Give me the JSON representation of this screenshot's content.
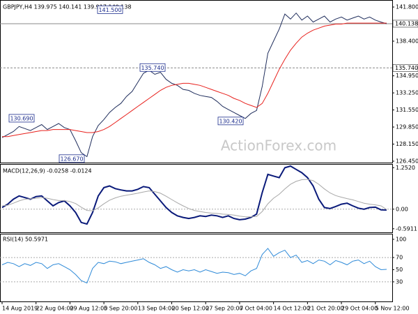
{
  "chart_data": [
    {
      "type": "line",
      "title": "GBPJPY,H4  139.975 140.141 139.917 140.138",
      "ylim": [
        126.31,
        142.29
      ],
      "yticks": [
        {
          "value": 141.8,
          "label": "141.800"
        },
        {
          "value": 138.4,
          "label": "138.400"
        },
        {
          "value": 134.95,
          "label": "134.950"
        },
        {
          "value": 133.25,
          "label": "133.250"
        },
        {
          "value": 131.55,
          "label": "131.550"
        },
        {
          "value": 129.85,
          "label": "129.850"
        },
        {
          "value": 128.15,
          "label": "128.150"
        },
        {
          "value": 126.45,
          "label": "126.450"
        }
      ],
      "levels": [
        {
          "value": 140.138,
          "label": "140.138"
        },
        {
          "value": 135.74,
          "label": "135.740"
        }
      ],
      "annotations": [
        {
          "value": 141.5,
          "label": "141.500"
        },
        {
          "value": 135.74,
          "label": "135.740"
        },
        {
          "value": 130.69,
          "label": "130.690"
        },
        {
          "value": 130.42,
          "label": "130.420"
        },
        {
          "value": 126.67,
          "label": "126.670"
        }
      ],
      "watermark": "ActionForex.com",
      "series": [
        {
          "name": "GBPJPY",
          "color": "#1f2d5c",
          "values": [
            128.8,
            129.1,
            129.4,
            129.9,
            129.7,
            129.5,
            129.8,
            130.1,
            129.6,
            129.9,
            130.2,
            129.8,
            129.6,
            128.5,
            127.3,
            126.9,
            128.9,
            130.0,
            130.6,
            131.3,
            131.8,
            132.2,
            132.9,
            133.4,
            134.3,
            135.2,
            135.5,
            135.1,
            135.3,
            134.6,
            134.2,
            134.0,
            133.6,
            133.5,
            133.2,
            133.0,
            132.9,
            132.8,
            132.4,
            131.9,
            131.6,
            131.3,
            131.0,
            130.7,
            131.2,
            131.5,
            133.9,
            137.2,
            138.4,
            139.6,
            141.1,
            140.6,
            141.2,
            140.5,
            140.9,
            140.3,
            140.6,
            140.9,
            140.3,
            140.6,
            140.8,
            140.5,
            140.7,
            140.9,
            140.6,
            140.8,
            140.5,
            140.3,
            140.138
          ]
        },
        {
          "name": "MA",
          "color": "#e8201c",
          "values": [
            128.9,
            128.9,
            129.0,
            129.1,
            129.2,
            129.3,
            129.4,
            129.5,
            129.5,
            129.6,
            129.6,
            129.6,
            129.6,
            129.5,
            129.4,
            129.3,
            129.3,
            129.4,
            129.6,
            129.9,
            130.3,
            130.7,
            131.1,
            131.5,
            131.9,
            132.3,
            132.7,
            133.1,
            133.5,
            133.8,
            134.0,
            134.1,
            134.2,
            134.2,
            134.1,
            134.0,
            133.8,
            133.6,
            133.4,
            133.2,
            133.0,
            132.7,
            132.5,
            132.2,
            132.0,
            131.8,
            132.2,
            133.2,
            134.4,
            135.6,
            136.6,
            137.5,
            138.2,
            138.8,
            139.2,
            139.5,
            139.7,
            139.9,
            140.0,
            140.1,
            140.1,
            140.2,
            140.2,
            140.2,
            140.2,
            140.2,
            140.2,
            140.2,
            140.2
          ]
        }
      ]
    },
    {
      "type": "line",
      "title": "MACD(12,26,9) -0.0258 -0.0124",
      "ylim": [
        -0.7,
        1.3
      ],
      "yticks": [
        {
          "value": 1.252,
          "label": "1.2520"
        },
        {
          "value": 0,
          "label": "0.00"
        },
        {
          "value": -0.5911,
          "label": "-0.5911"
        }
      ],
      "series": [
        {
          "name": "MACD",
          "color": "#0a1a7a",
          "values": [
            0.05,
            0.15,
            0.3,
            0.4,
            0.35,
            0.3,
            0.38,
            0.4,
            0.25,
            0.1,
            0.2,
            0.25,
            0.1,
            -0.1,
            -0.4,
            -0.45,
            -0.1,
            0.4,
            0.65,
            0.7,
            0.62,
            0.58,
            0.55,
            0.55,
            0.6,
            0.68,
            0.65,
            0.45,
            0.25,
            0.05,
            -0.1,
            -0.2,
            -0.25,
            -0.28,
            -0.25,
            -0.2,
            -0.22,
            -0.18,
            -0.2,
            -0.25,
            -0.2,
            -0.28,
            -0.32,
            -0.3,
            -0.25,
            -0.15,
            0.5,
            1.05,
            1.0,
            0.95,
            1.25,
            1.3,
            1.2,
            1.1,
            0.95,
            0.7,
            0.3,
            0.05,
            0.02,
            0.08,
            0.15,
            0.18,
            0.1,
            0.03,
            0.0,
            0.05,
            0.06,
            -0.02,
            -0.0258
          ]
        },
        {
          "name": "Signal",
          "color": "#a8a8a8",
          "values": [
            0.1,
            0.12,
            0.18,
            0.25,
            0.3,
            0.31,
            0.33,
            0.35,
            0.33,
            0.29,
            0.26,
            0.26,
            0.23,
            0.17,
            0.06,
            -0.04,
            -0.05,
            0.04,
            0.16,
            0.27,
            0.34,
            0.39,
            0.42,
            0.45,
            0.48,
            0.52,
            0.55,
            0.53,
            0.48,
            0.39,
            0.29,
            0.19,
            0.1,
            0.02,
            -0.04,
            -0.07,
            -0.1,
            -0.12,
            -0.13,
            -0.15,
            -0.16,
            -0.18,
            -0.21,
            -0.23,
            -0.23,
            -0.22,
            -0.07,
            0.16,
            0.33,
            0.45,
            0.61,
            0.75,
            0.84,
            0.89,
            0.9,
            0.86,
            0.75,
            0.61,
            0.49,
            0.41,
            0.36,
            0.32,
            0.28,
            0.23,
            0.18,
            0.15,
            0.13,
            0.1,
            -0.0124
          ]
        }
      ]
    },
    {
      "type": "line",
      "title": "RSI(14) 50.5971",
      "ylim": [
        0,
        108
      ],
      "yticks": [
        100,
        70,
        50,
        30
      ],
      "categories": [
        "14 Aug 2019",
        null,
        null,
        null,
        null,
        null,
        "22 Aug 04:00",
        null,
        null,
        null,
        null,
        null,
        "29 Aug 12:00",
        null,
        null,
        null,
        null,
        null,
        "5 Sep 20:00",
        null,
        null,
        null,
        null,
        null,
        "13 Sep 04:00",
        null,
        null,
        null,
        null,
        null,
        "20 Sep 12:00",
        null,
        null,
        null,
        null,
        null,
        "27 Sep 20:00",
        null,
        null,
        null,
        null,
        null,
        "7 Oct 04:00",
        null,
        null,
        null,
        null,
        null,
        "14 Oct 12:00",
        null,
        null,
        null,
        null,
        null,
        "21 Oct 20:00",
        null,
        null,
        null,
        null,
        null,
        "29 Oct 04:00",
        null,
        null,
        null,
        null,
        null,
        "5 Nov 12:00",
        null,
        null
      ],
      "series": [
        {
          "name": "RSI",
          "color": "#2e8ad8",
          "values": [
            58,
            62,
            60,
            55,
            60,
            57,
            62,
            60,
            52,
            58,
            60,
            55,
            50,
            42,
            32,
            28,
            52,
            62,
            60,
            64,
            63,
            60,
            62,
            64,
            66,
            68,
            62,
            58,
            52,
            55,
            50,
            46,
            50,
            48,
            50,
            46,
            50,
            47,
            44,
            46,
            45,
            42,
            44,
            40,
            48,
            52,
            75,
            85,
            72,
            78,
            82,
            70,
            74,
            62,
            65,
            60,
            66,
            64,
            58,
            65,
            62,
            58,
            64,
            66,
            60,
            64,
            55,
            50,
            50.5971
          ]
        }
      ]
    }
  ]
}
